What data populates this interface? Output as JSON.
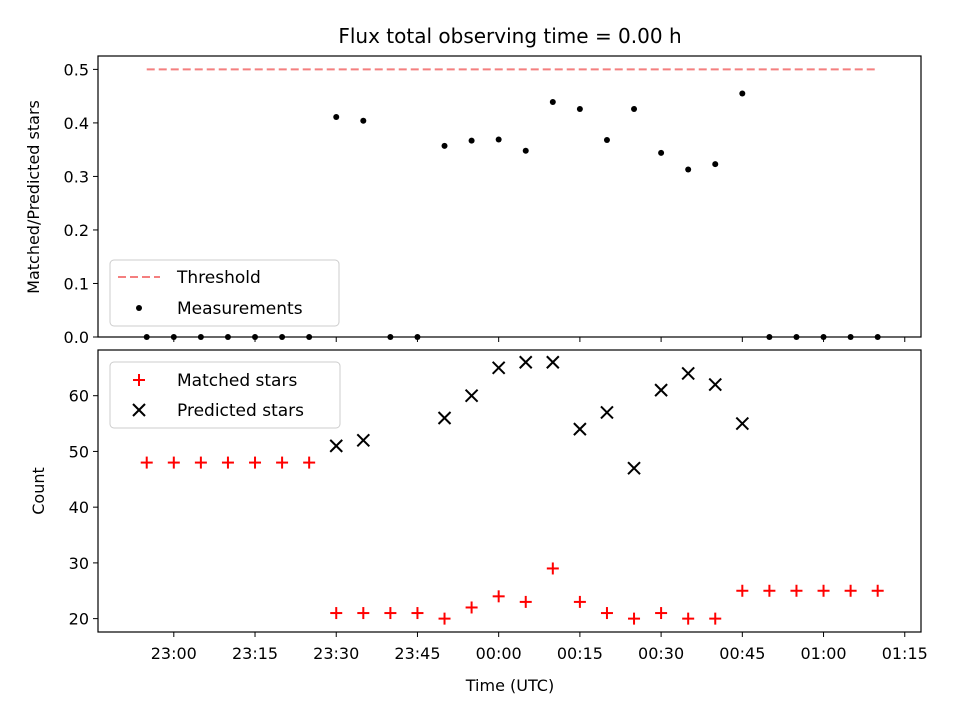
{
  "chart_data": [
    {
      "type": "scatter",
      "title": "Flux total observing time = 0.00 h",
      "ylabel": "Matched/Predicted stars",
      "xlabel": "",
      "ylim": [
        0,
        0.525
      ],
      "yticks": [
        "0.0",
        "0.1",
        "0.2",
        "0.3",
        "0.4",
        "0.5"
      ],
      "yticks_values": [
        0,
        0.1,
        0.2,
        0.3,
        0.4,
        0.5
      ],
      "legend": "bottom-left",
      "threshold": {
        "name": "Threshold",
        "value": 0.5,
        "x_start": "22:55",
        "x_end": "01:10",
        "color": "#f47f7f"
      },
      "series": [
        {
          "name": "Measurements",
          "marker": "dot",
          "color": "#000000",
          "x": [
            "22:55",
            "23:00",
            "23:05",
            "23:10",
            "23:15",
            "23:20",
            "23:25",
            "23:30",
            "23:35",
            "23:40",
            "23:45",
            "23:50",
            "23:55",
            "00:00",
            "00:05",
            "00:10",
            "00:15",
            "00:20",
            "00:25",
            "00:30",
            "00:35",
            "00:40",
            "00:45",
            "00:50",
            "00:55",
            "01:00",
            "01:05",
            "01:10"
          ],
          "values": [
            0,
            0,
            0,
            0,
            0,
            0,
            0,
            0.411,
            0.404,
            0,
            0,
            0.357,
            0.367,
            0.369,
            0.348,
            0.439,
            0.426,
            0.368,
            0.426,
            0.344,
            0.313,
            0.323,
            0.455,
            0,
            0,
            0,
            0,
            0
          ]
        }
      ]
    },
    {
      "type": "scatter",
      "title": "",
      "ylabel": "Count",
      "xlabel": "Time (UTC)",
      "ylim": [
        17.6,
        68.2
      ],
      "yticks": [
        "20",
        "30",
        "40",
        "50",
        "60"
      ],
      "yticks_values": [
        20,
        30,
        40,
        50,
        60
      ],
      "xlim": [
        "22:46",
        "01:18"
      ],
      "xticks": [
        "23:00",
        "23:15",
        "23:30",
        "23:45",
        "00:00",
        "00:15",
        "00:30",
        "00:45",
        "01:00",
        "01:15"
      ],
      "legend": "top-left",
      "x": [
        "22:55",
        "23:00",
        "23:05",
        "23:10",
        "23:15",
        "23:20",
        "23:25",
        "23:30",
        "23:35",
        "23:40",
        "23:45",
        "23:50",
        "23:55",
        "00:00",
        "00:05",
        "00:10",
        "00:15",
        "00:20",
        "00:25",
        "00:30",
        "00:35",
        "00:40",
        "00:45",
        "00:50",
        "00:55",
        "01:00",
        "01:05",
        "01:10"
      ],
      "series": [
        {
          "name": "Matched stars",
          "marker": "plus",
          "color": "#ff0000",
          "values": [
            48,
            48,
            48,
            48,
            48,
            48,
            48,
            21,
            21,
            21,
            21,
            20,
            22,
            24,
            23,
            29,
            23,
            21,
            20,
            21,
            20,
            20,
            25,
            25,
            25,
            25,
            25,
            25
          ]
        },
        {
          "name": "Predicted stars",
          "marker": "x",
          "color": "#000000",
          "values": [
            null,
            null,
            null,
            null,
            null,
            null,
            null,
            51,
            52,
            null,
            null,
            56,
            60,
            65,
            66,
            66,
            54,
            57,
            47,
            61,
            64,
            62,
            55,
            null,
            null,
            null,
            null,
            null
          ]
        }
      ]
    }
  ]
}
